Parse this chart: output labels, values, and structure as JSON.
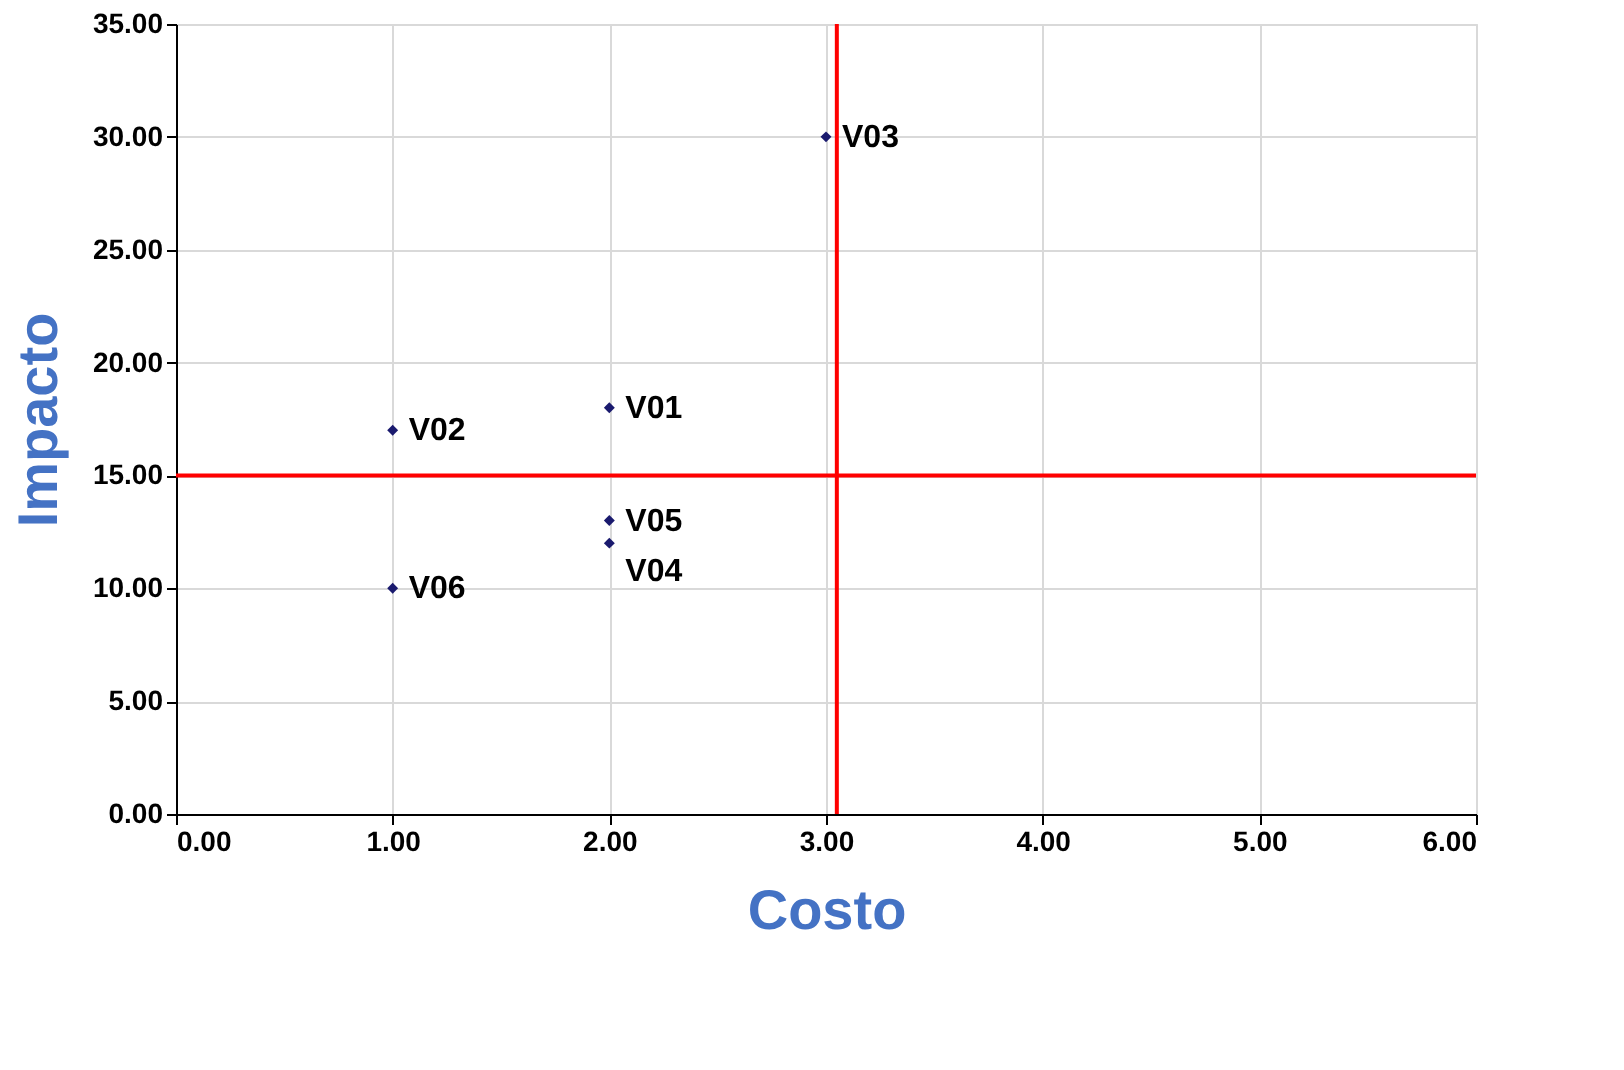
{
  "chart_data": {
    "type": "scatter",
    "xlabel": "Costo",
    "ylabel": "Impacto",
    "x": [
      2,
      1,
      3,
      2,
      2,
      1
    ],
    "values": [
      18,
      17,
      30,
      12,
      13,
      10
    ],
    "color": "#1a1a6e",
    "marker": "diamond",
    "xlim": [
      0,
      6
    ],
    "xticks": [
      {
        "value": 0,
        "label": "0.00"
      },
      {
        "value": 1,
        "label": "1.00"
      },
      {
        "value": 2,
        "label": "2.00"
      },
      {
        "value": 3,
        "label": "3.00"
      },
      {
        "value": 4,
        "label": "4.00"
      },
      {
        "value": 5,
        "label": "5.00"
      },
      {
        "value": 6,
        "label": "6.00"
      }
    ],
    "ylim": [
      0,
      35
    ],
    "yticks": [
      {
        "value": 0,
        "label": "0.00"
      },
      {
        "value": 5,
        "label": "5.00"
      },
      {
        "value": 10,
        "label": "10.00"
      },
      {
        "value": 15,
        "label": "15.00"
      },
      {
        "value": 20,
        "label": "20.00"
      },
      {
        "value": 25,
        "label": "25.00"
      },
      {
        "value": 30,
        "label": "30.00"
      },
      {
        "value": 35,
        "label": "35.00"
      }
    ],
    "grid": true,
    "ref_lines": [
      {
        "axis": "x",
        "value": 3.05,
        "color": "#ff0000"
      },
      {
        "axis": "y",
        "value": 15,
        "color": "#ff0000"
      }
    ],
    "annotations": [
      {
        "text": "V01",
        "x": 2,
        "y": 18
      },
      {
        "text": "V02",
        "x": 1,
        "y": 17
      },
      {
        "text": "V03",
        "x": 3,
        "y": 30
      },
      {
        "text": "V04",
        "x": 2,
        "y": 12
      },
      {
        "text": "V05",
        "x": 2,
        "y": 13
      },
      {
        "text": "V06",
        "x": 1,
        "y": 10
      }
    ]
  }
}
